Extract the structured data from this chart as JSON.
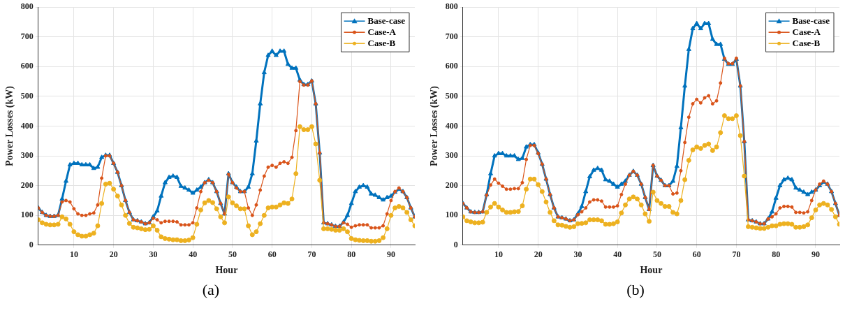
{
  "chart_data": [
    {
      "type": "line",
      "xlabel": "Hour",
      "ylabel": "Power Losses (kW)",
      "annotations": [
        "(a)"
      ],
      "xlim": [
        1,
        96
      ],
      "xticks": [
        10,
        20,
        30,
        40,
        50,
        60,
        70,
        80,
        90
      ],
      "ylim": [
        0,
        800
      ],
      "yticks": [
        0,
        100,
        200,
        300,
        400,
        500,
        600,
        700,
        800
      ],
      "grid": true,
      "legend": "top right",
      "line_style": "solid",
      "x": [
        1,
        2,
        3,
        4,
        5,
        6,
        7,
        8,
        9,
        10,
        11,
        12,
        13,
        14,
        15,
        16,
        17,
        18,
        19,
        20,
        21,
        22,
        23,
        24,
        25,
        26,
        27,
        28,
        29,
        30,
        31,
        32,
        33,
        34,
        35,
        36,
        37,
        38,
        39,
        40,
        41,
        42,
        43,
        44,
        45,
        46,
        47,
        48,
        49,
        50,
        51,
        52,
        53,
        54,
        55,
        56,
        57,
        58,
        59,
        60,
        61,
        62,
        63,
        64,
        65,
        66,
        67,
        68,
        69,
        70,
        71,
        72,
        73,
        74,
        75,
        76,
        77,
        78,
        79,
        80,
        81,
        82,
        83,
        84,
        85,
        86,
        87,
        88,
        89,
        90,
        91,
        92,
        93,
        94,
        95,
        96
      ],
      "series": [
        {
          "name": "Base-case",
          "color": "#0072bd",
          "marker": "triangle",
          "values": [
            125,
            110,
            100,
            97,
            97,
            100,
            155,
            215,
            270,
            275,
            275,
            270,
            270,
            270,
            258,
            262,
            295,
            302,
            302,
            275,
            245,
            200,
            150,
            110,
            85,
            82,
            78,
            72,
            75,
            95,
            115,
            165,
            210,
            228,
            232,
            228,
            198,
            192,
            185,
            175,
            185,
            195,
            210,
            220,
            210,
            180,
            140,
            105,
            240,
            210,
            195,
            180,
            180,
            195,
            240,
            350,
            475,
            580,
            638,
            652,
            638,
            652,
            652,
            608,
            595,
            595,
            555,
            540,
            540,
            552,
            475,
            310,
            75,
            72,
            68,
            63,
            63,
            77,
            100,
            140,
            180,
            195,
            200,
            195,
            172,
            168,
            160,
            152,
            160,
            165,
            178,
            188,
            180,
            160,
            125,
            95
          ]
        },
        {
          "name": "Case-A",
          "color": "#d95319",
          "marker": "circle",
          "values": [
            125,
            110,
            100,
            97,
            97,
            100,
            145,
            150,
            145,
            122,
            105,
            100,
            100,
            105,
            108,
            135,
            225,
            300,
            300,
            275,
            245,
            200,
            150,
            110,
            85,
            82,
            78,
            72,
            75,
            90,
            85,
            75,
            80,
            80,
            80,
            78,
            68,
            68,
            68,
            75,
            125,
            180,
            210,
            218,
            210,
            180,
            140,
            105,
            238,
            210,
            192,
            180,
            180,
            125,
            100,
            135,
            185,
            232,
            262,
            268,
            262,
            275,
            280,
            275,
            295,
            385,
            550,
            538,
            538,
            552,
            475,
            310,
            75,
            72,
            68,
            63,
            63,
            75,
            70,
            60,
            65,
            68,
            68,
            68,
            58,
            58,
            58,
            65,
            105,
            150,
            180,
            192,
            180,
            160,
            125,
            95
          ]
        },
        {
          "name": "Case-B",
          "color": "#edb120",
          "marker": "circle",
          "values": [
            85,
            75,
            70,
            68,
            68,
            70,
            95,
            88,
            70,
            45,
            35,
            30,
            30,
            35,
            40,
            65,
            140,
            205,
            208,
            188,
            165,
            135,
            100,
            73,
            60,
            58,
            55,
            52,
            53,
            65,
            50,
            28,
            22,
            20,
            18,
            18,
            15,
            15,
            17,
            25,
            70,
            118,
            142,
            150,
            143,
            122,
            95,
            75,
            162,
            142,
            132,
            122,
            122,
            65,
            35,
            45,
            72,
            100,
            125,
            128,
            128,
            135,
            142,
            140,
            155,
            240,
            398,
            388,
            388,
            398,
            340,
            218,
            55,
            55,
            53,
            50,
            50,
            55,
            45,
            22,
            18,
            16,
            15,
            15,
            13,
            13,
            15,
            25,
            55,
            100,
            125,
            130,
            125,
            110,
            85,
            65
          ]
        }
      ]
    },
    {
      "type": "line",
      "xlabel": "Hour",
      "ylabel": "Power Losses (kW)",
      "annotations": [
        "(b)"
      ],
      "xlim": [
        1,
        96
      ],
      "xticks": [
        10,
        20,
        30,
        40,
        50,
        60,
        70,
        80,
        90
      ],
      "ylim": [
        0,
        800
      ],
      "yticks": [
        0,
        100,
        200,
        300,
        400,
        500,
        600,
        700,
        800
      ],
      "grid": true,
      "legend": "top right",
      "line_style": "solid",
      "x": [
        1,
        2,
        3,
        4,
        5,
        6,
        7,
        8,
        9,
        10,
        11,
        12,
        13,
        14,
        15,
        16,
        17,
        18,
        19,
        20,
        21,
        22,
        23,
        24,
        25,
        26,
        27,
        28,
        29,
        30,
        31,
        32,
        33,
        34,
        35,
        36,
        37,
        38,
        39,
        40,
        41,
        42,
        43,
        44,
        45,
        46,
        47,
        48,
        49,
        50,
        51,
        52,
        53,
        54,
        55,
        56,
        57,
        58,
        59,
        60,
        61,
        62,
        63,
        64,
        65,
        66,
        67,
        68,
        69,
        70,
        71,
        72,
        73,
        74,
        75,
        76,
        77,
        78,
        79,
        80,
        81,
        82,
        83,
        84,
        85,
        86,
        87,
        88,
        89,
        90,
        91,
        92,
        93,
        94,
        95,
        96
      ],
      "series": [
        {
          "name": "Base-case",
          "color": "#0072bd",
          "marker": "triangle",
          "values": [
            140,
            125,
            112,
            110,
            110,
            112,
            170,
            240,
            300,
            308,
            308,
            300,
            300,
            300,
            288,
            292,
            330,
            338,
            338,
            310,
            272,
            222,
            170,
            125,
            95,
            92,
            88,
            82,
            85,
            105,
            130,
            180,
            230,
            252,
            258,
            252,
            220,
            215,
            205,
            195,
            205,
            215,
            235,
            248,
            235,
            205,
            160,
            120,
            268,
            232,
            218,
            200,
            200,
            215,
            265,
            395,
            535,
            658,
            728,
            745,
            728,
            745,
            745,
            692,
            675,
            675,
            625,
            608,
            608,
            625,
            535,
            348,
            85,
            82,
            78,
            72,
            72,
            88,
            112,
            158,
            200,
            220,
            225,
            220,
            192,
            185,
            178,
            170,
            178,
            185,
            200,
            212,
            205,
            180,
            140,
            100
          ]
        },
        {
          "name": "Case-A",
          "color": "#d95319",
          "marker": "circle",
          "values": [
            140,
            125,
            112,
            110,
            110,
            112,
            168,
            202,
            222,
            208,
            198,
            188,
            188,
            190,
            190,
            210,
            288,
            335,
            335,
            308,
            272,
            222,
            170,
            125,
            95,
            92,
            88,
            82,
            85,
            102,
            112,
            125,
            145,
            152,
            152,
            148,
            128,
            128,
            128,
            132,
            170,
            205,
            235,
            248,
            235,
            205,
            160,
            120,
            268,
            232,
            218,
            200,
            200,
            172,
            175,
            250,
            345,
            430,
            475,
            490,
            478,
            495,
            502,
            475,
            485,
            545,
            628,
            610,
            610,
            628,
            535,
            348,
            85,
            82,
            78,
            72,
            72,
            88,
            95,
            105,
            125,
            130,
            130,
            128,
            110,
            110,
            108,
            112,
            150,
            185,
            205,
            215,
            205,
            180,
            140,
            100
          ]
        },
        {
          "name": "Case-B",
          "color": "#edb120",
          "marker": "circle",
          "values": [
            95,
            82,
            78,
            75,
            75,
            77,
            110,
            128,
            140,
            128,
            118,
            110,
            110,
            112,
            113,
            132,
            188,
            222,
            222,
            203,
            180,
            145,
            110,
            82,
            68,
            67,
            63,
            60,
            62,
            72,
            73,
            75,
            85,
            85,
            85,
            82,
            70,
            70,
            72,
            78,
            108,
            135,
            155,
            162,
            155,
            135,
            105,
            80,
            178,
            150,
            140,
            130,
            130,
            110,
            105,
            150,
            220,
            285,
            320,
            330,
            325,
            335,
            340,
            318,
            330,
            378,
            435,
            425,
            425,
            435,
            368,
            232,
            62,
            60,
            58,
            56,
            56,
            60,
            65,
            65,
            70,
            72,
            72,
            70,
            60,
            60,
            62,
            68,
            92,
            118,
            135,
            140,
            135,
            120,
            95,
            70
          ]
        }
      ]
    }
  ]
}
